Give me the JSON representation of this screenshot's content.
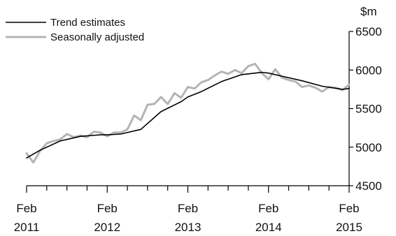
{
  "chart_data": {
    "type": "line",
    "unit": "$m",
    "y_axis_position": "right",
    "legend_position": "top-left",
    "grid": false,
    "ylim": [
      4500,
      6500
    ],
    "y_ticks": [
      4500,
      5000,
      5500,
      6000,
      6500
    ],
    "x_range": [
      2011.083,
      2015.083
    ],
    "x_tick_labels": [
      {
        "x": 2011.083,
        "month": "Feb",
        "year": "2011"
      },
      {
        "x": 2012.083,
        "month": "Feb",
        "year": "2012"
      },
      {
        "x": 2013.083,
        "month": "Feb",
        "year": "2013"
      },
      {
        "x": 2014.083,
        "month": "Feb",
        "year": "2014"
      },
      {
        "x": 2015.083,
        "month": "Feb",
        "year": "2015"
      }
    ],
    "minor_tick_step": 0.25,
    "series": [
      {
        "name": "Trend estimates",
        "color": "#000000",
        "x": [
          2011.083,
          2011.25,
          2011.5,
          2011.75,
          2012.0,
          2012.083,
          2012.25,
          2012.5,
          2012.75,
          2013.0,
          2013.083,
          2013.25,
          2013.5,
          2013.75,
          2014.0,
          2014.083,
          2014.25,
          2014.5,
          2014.75,
          2015.0,
          2015.083
        ],
        "y": [
          4860,
          4960,
          5080,
          5140,
          5160,
          5160,
          5170,
          5230,
          5460,
          5590,
          5650,
          5720,
          5850,
          5940,
          5970,
          5960,
          5920,
          5860,
          5790,
          5750,
          5760
        ]
      },
      {
        "name": "Seasonally adjusted",
        "color": "#b4b4b4",
        "x": [
          2011.083,
          2011.167,
          2011.25,
          2011.333,
          2011.417,
          2011.5,
          2011.583,
          2011.667,
          2011.75,
          2011.833,
          2011.917,
          2012.0,
          2012.083,
          2012.167,
          2012.25,
          2012.333,
          2012.417,
          2012.5,
          2012.583,
          2012.667,
          2012.75,
          2012.833,
          2012.917,
          2013.0,
          2013.083,
          2013.167,
          2013.25,
          2013.333,
          2013.417,
          2013.5,
          2013.583,
          2013.667,
          2013.75,
          2013.833,
          2013.917,
          2014.0,
          2014.083,
          2014.167,
          2014.25,
          2014.333,
          2014.417,
          2014.5,
          2014.583,
          2014.667,
          2014.75,
          2014.833,
          2014.917,
          2015.0,
          2015.083
        ],
        "y": [
          4920,
          4800,
          4950,
          5050,
          5080,
          5100,
          5170,
          5130,
          5150,
          5130,
          5200,
          5190,
          5140,
          5190,
          5190,
          5230,
          5410,
          5350,
          5550,
          5560,
          5650,
          5560,
          5700,
          5640,
          5780,
          5760,
          5840,
          5870,
          5930,
          5980,
          5950,
          6000,
          5960,
          6050,
          6080,
          5960,
          5880,
          6010,
          5900,
          5870,
          5850,
          5780,
          5800,
          5770,
          5720,
          5780,
          5770,
          5740,
          5810
        ]
      }
    ]
  }
}
